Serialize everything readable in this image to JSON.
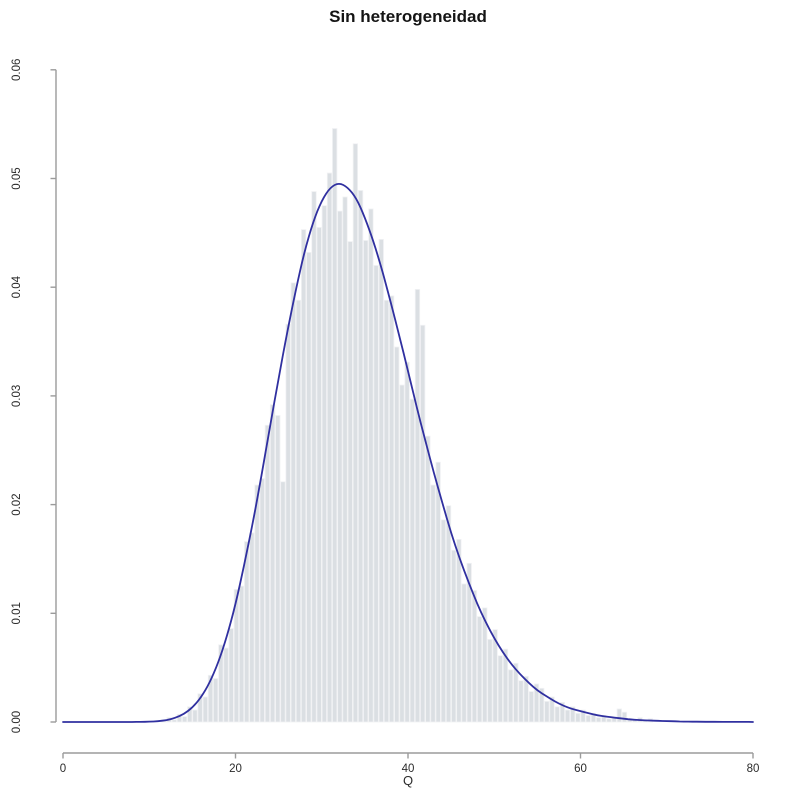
{
  "title": "Sin heterogeneidad",
  "colors": {
    "background": "#ffffff",
    "bar_fill": "#dbdfe3",
    "bar_border": "#f1f2f4",
    "curve": "#3030a0",
    "axis_line": "#9b9b9b",
    "tick_text": "#2b2b2b"
  },
  "chart_data": {
    "type": "histogram_with_density_curve",
    "title": "Sin heterogeneidad",
    "xlabel": "Q",
    "ylabel": "",
    "x_axis": {
      "range": [
        0,
        80
      ],
      "ticks": [
        {
          "value": 0,
          "label": "0"
        },
        {
          "value": 20,
          "label": "20"
        },
        {
          "value": 40,
          "label": "40"
        },
        {
          "value": 60,
          "label": "60"
        },
        {
          "value": 80,
          "label": "80"
        }
      ]
    },
    "y_axis": {
      "range": [
        0,
        0.06
      ],
      "ticks": [
        {
          "value": 0.0,
          "label": "0.00"
        },
        {
          "value": 0.01,
          "label": "0.01"
        },
        {
          "value": 0.02,
          "label": "0.02"
        },
        {
          "value": 0.03,
          "label": "0.03"
        },
        {
          "value": 0.04,
          "label": "0.04"
        },
        {
          "value": 0.05,
          "label": "0.05"
        },
        {
          "value": 0.06,
          "label": "0.06"
        }
      ]
    },
    "histogram": {
      "x_start": 11.4,
      "bin_width": 0.6,
      "heights": [
        0.0002,
        0.0004,
        0.0002,
        0.0007,
        0.0005,
        0.0014,
        0.0011,
        0.0026,
        0.0023,
        0.0043,
        0.004,
        0.0071,
        0.0068,
        0.0086,
        0.0122,
        0.0125,
        0.0166,
        0.0174,
        0.0218,
        0.0224,
        0.0273,
        0.0292,
        0.0282,
        0.0221,
        0.0366,
        0.0404,
        0.0388,
        0.0453,
        0.0432,
        0.0488,
        0.0455,
        0.0475,
        0.0505,
        0.0546,
        0.047,
        0.0483,
        0.0442,
        0.0532,
        0.0489,
        0.0443,
        0.0472,
        0.042,
        0.0444,
        0.0388,
        0.0392,
        0.0345,
        0.031,
        0.0331,
        0.0297,
        0.0398,
        0.0365,
        0.0263,
        0.0218,
        0.0239,
        0.0186,
        0.0199,
        0.0158,
        0.0168,
        0.0127,
        0.0146,
        0.0121,
        0.0097,
        0.0105,
        0.0076,
        0.0085,
        0.0061,
        0.0067,
        0.0048,
        0.0054,
        0.0038,
        0.0042,
        0.0028,
        0.0035,
        0.0031,
        0.0019,
        0.0023,
        0.0014,
        0.0018,
        0.0011,
        0.0014,
        0.0008,
        0.0011,
        0.0006,
        0.0008,
        0.0004,
        0.0006,
        0.0003,
        0.0005,
        0.0012,
        0.0009,
        0.0003,
        0.0002,
        0.0004,
        0.0002,
        0.0003
      ]
    },
    "density_curve": {
      "name": "chi-square density",
      "x_start": 0,
      "x_step": 1,
      "y": [
        0,
        0,
        0,
        0,
        0,
        0,
        0,
        0,
        2e-06,
        7.5e-06,
        2.45e-05,
        6.84e-05,
        0.000167,
        0.000364,
        0.00072,
        0.00132,
        0.00225,
        0.0036,
        0.00546,
        0.00787,
        0.0108,
        0.0144,
        0.0183,
        0.0226,
        0.0272,
        0.0316,
        0.0359,
        0.0398,
        0.0433,
        0.046,
        0.048,
        0.0492,
        0.0496,
        0.0492,
        0.0482,
        0.0464,
        0.0442,
        0.0416,
        0.0386,
        0.0355,
        0.0323,
        0.029,
        0.0259,
        0.0229,
        0.0201,
        0.0174,
        0.015,
        0.0129,
        0.0109,
        0.0092,
        0.0077,
        0.0064,
        0.0053,
        0.0044,
        0.0036,
        0.0029,
        0.0024,
        0.0019,
        0.0015,
        0.0012,
        0.001,
        0.0008,
        0.0006,
        0.0005,
        0.0004,
        0.0003,
        0.00022,
        0.00017,
        0.00013,
        0.0001,
        8e-05,
        6e-05,
        4e-05,
        3e-05,
        2.5e-05,
        2e-05,
        1.4e-05,
        1e-05,
        8e-06,
        6e-06,
        4e-06
      ]
    }
  }
}
